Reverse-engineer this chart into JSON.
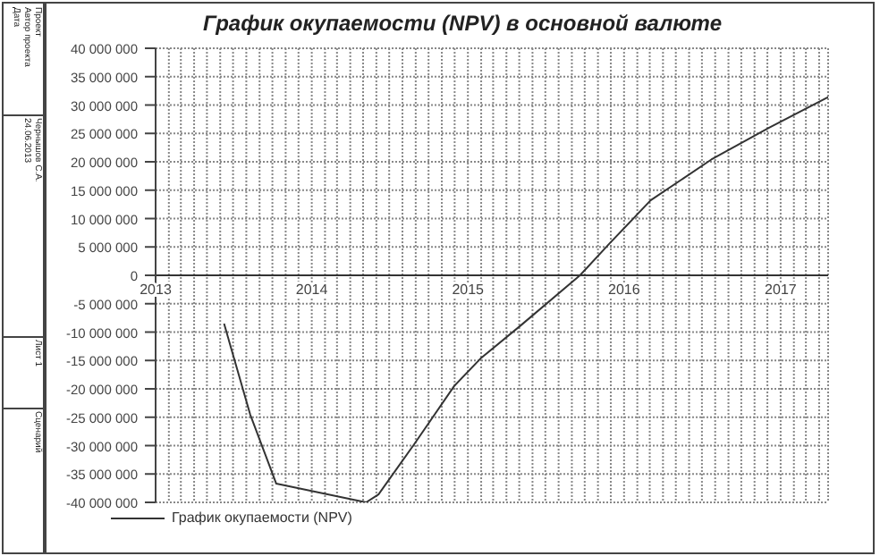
{
  "chart_data": {
    "type": "line",
    "title": "График окупаемости (NPV) в основной валюте",
    "annotations": [
      "Проект",
      "Автор проекта",
      "Дата",
      "Чернышов С.А.",
      "24.06.2013",
      "Лист 1",
      "Сценарий"
    ],
    "x": [
      "2013-06-10",
      "2013-08-10",
      "2013-10-10",
      "2014-05-08",
      "2014-06-06",
      "2014-08-28",
      "2014-12-01",
      "2015-01-30",
      "2015-05-05",
      "2015-09-20",
      "2015-11-28",
      "2016-03-03",
      "2016-07-23",
      "2016-12-05",
      "2017-04-22"
    ],
    "series": [
      {
        "name": "График окупаемости (NPV)",
        "color": "#333333",
        "values": [
          -8500000,
          -24500000,
          -36700000,
          -40000000,
          -38600000,
          -29800000,
          -19400000,
          -14700000,
          -8800000,
          0,
          5600000,
          13200000,
          20400000,
          26000000,
          31400000
        ]
      }
    ],
    "xlim": [
      "2013-01-01",
      "2017-04-22"
    ],
    "xticks": [
      {
        "value": "2013-01",
        "label": "2013"
      },
      {
        "value": "2013-02",
        "label": null
      },
      {
        "value": "2013-03",
        "label": null
      },
      {
        "value": "2013-04",
        "label": null
      },
      {
        "value": "2013-05",
        "label": null
      },
      {
        "value": "2013-06",
        "label": null
      },
      {
        "value": "2013-07",
        "label": null
      },
      {
        "value": "2013-08",
        "label": null
      },
      {
        "value": "2013-09",
        "label": null
      },
      {
        "value": "2013-10",
        "label": null
      },
      {
        "value": "2013-11",
        "label": null
      },
      {
        "value": "2013-12",
        "label": null
      },
      {
        "value": "2014-01",
        "label": "2014"
      },
      {
        "value": "2014-02",
        "label": null
      },
      {
        "value": "2014-03",
        "label": null
      },
      {
        "value": "2014-04",
        "label": null
      },
      {
        "value": "2014-05",
        "label": null
      },
      {
        "value": "2014-06",
        "label": null
      },
      {
        "value": "2014-07",
        "label": null
      },
      {
        "value": "2014-08",
        "label": null
      },
      {
        "value": "2014-09",
        "label": null
      },
      {
        "value": "2014-10",
        "label": null
      },
      {
        "value": "2014-11",
        "label": null
      },
      {
        "value": "2014-12",
        "label": null
      },
      {
        "value": "2015-01",
        "label": "2015"
      },
      {
        "value": "2015-02",
        "label": null
      },
      {
        "value": "2015-03",
        "label": null
      },
      {
        "value": "2015-04",
        "label": null
      },
      {
        "value": "2015-05",
        "label": null
      },
      {
        "value": "2015-06",
        "label": null
      },
      {
        "value": "2015-07",
        "label": null
      },
      {
        "value": "2015-08",
        "label": null
      },
      {
        "value": "2015-09",
        "label": null
      },
      {
        "value": "2015-10",
        "label": null
      },
      {
        "value": "2015-11",
        "label": null
      },
      {
        "value": "2015-12",
        "label": null
      },
      {
        "value": "2016-01",
        "label": "2016"
      },
      {
        "value": "2016-02",
        "label": null
      },
      {
        "value": "2016-03",
        "label": null
      },
      {
        "value": "2016-04",
        "label": null
      },
      {
        "value": "2016-05",
        "label": null
      },
      {
        "value": "2016-06",
        "label": null
      },
      {
        "value": "2016-07",
        "label": null
      },
      {
        "value": "2016-08",
        "label": null
      },
      {
        "value": "2016-09",
        "label": null
      },
      {
        "value": "2016-10",
        "label": null
      },
      {
        "value": "2016-11",
        "label": null
      },
      {
        "value": "2016-12",
        "label": null
      },
      {
        "value": "2017-01",
        "label": "2017"
      },
      {
        "value": "2017-02",
        "label": null
      },
      {
        "value": "2017-03",
        "label": null
      },
      {
        "value": "2017-04",
        "label": null
      }
    ],
    "ylim": [
      -40000000,
      40000000
    ],
    "yticks": [
      {
        "value": -40000000,
        "label": "-40 000 000"
      },
      {
        "value": -35000000,
        "label": "-35 000 000"
      },
      {
        "value": -30000000,
        "label": "-30 000 000"
      },
      {
        "value": -25000000,
        "label": "-25 000 000"
      },
      {
        "value": -20000000,
        "label": "-20 000 000"
      },
      {
        "value": -15000000,
        "label": "-15 000 000"
      },
      {
        "value": -10000000,
        "label": "-10 000 000"
      },
      {
        "value": -5000000,
        "label": "-5 000 000"
      },
      {
        "value": 0,
        "label": "0"
      },
      {
        "value": 5000000,
        "label": "5 000 000"
      },
      {
        "value": 10000000,
        "label": "10 000 000"
      },
      {
        "value": 15000000,
        "label": "15 000 000"
      },
      {
        "value": 20000000,
        "label": "20 000 000"
      },
      {
        "value": 25000000,
        "label": "25 000 000"
      },
      {
        "value": 30000000,
        "label": "30 000 000"
      },
      {
        "value": 35000000,
        "label": "35 000 000"
      },
      {
        "value": 40000000,
        "label": "40 000 000"
      }
    ],
    "grid": true,
    "legend": "bottom left",
    "marker": "none",
    "line_style": "solid"
  }
}
